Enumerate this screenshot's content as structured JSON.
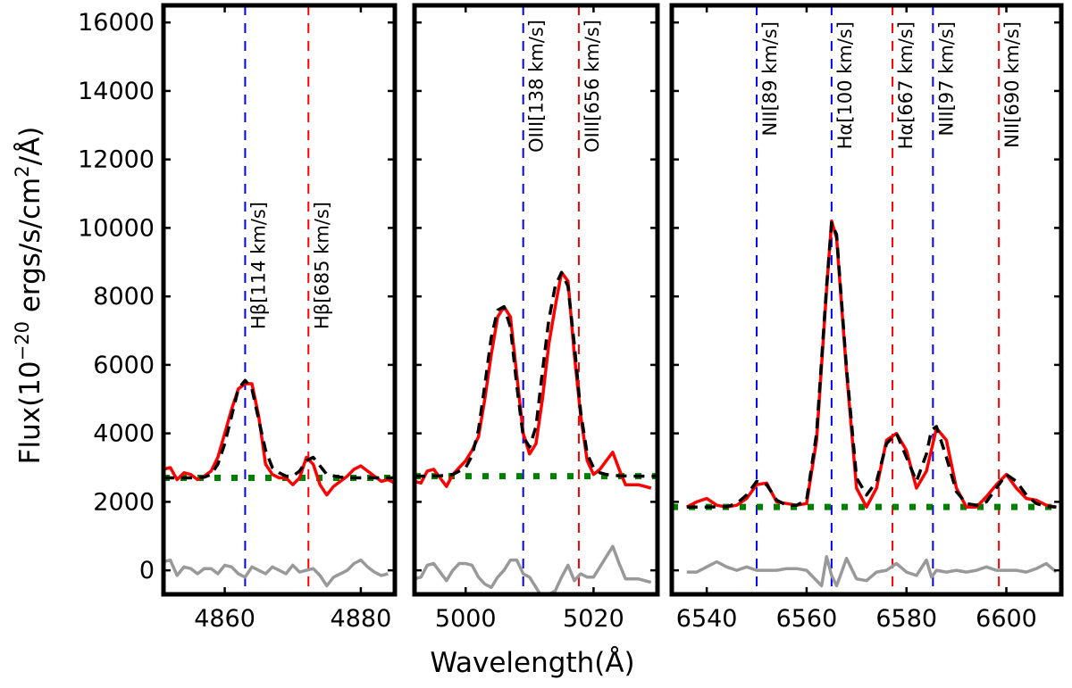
{
  "chart_data": {
    "type": "line",
    "xlabel": "Wavelength(Å)",
    "ylabel_parts": [
      "Flux(10",
      "−20",
      " ergs/s/cm",
      "2",
      "/Å)"
    ],
    "ylabel": "Flux(10−20 ergs/s/cm2/Å)",
    "ylim": [
      -700,
      16500
    ],
    "y_ticks": [
      0,
      2000,
      4000,
      6000,
      8000,
      10000,
      12000,
      14000,
      16000
    ],
    "y_tick_labels": [
      "0",
      "2000",
      "4000",
      "6000",
      "8000",
      "10000",
      "12000",
      "14000",
      "16000"
    ],
    "colors": {
      "observed": "#ff0000",
      "model": "#000000",
      "continuum": "#008000",
      "residual": "#999999",
      "narrow": "#0000ff",
      "broad": "#ff0000"
    },
    "panels": [
      {
        "name": "hbeta",
        "xlim": [
          4851,
          4885
        ],
        "x_ticks": [
          4860,
          4880
        ],
        "x_tick_labels": [
          "4860",
          "4880"
        ],
        "continuum": 2700,
        "observed": {
          "x": [
            4851,
            4852,
            4853,
            4854,
            4855,
            4856,
            4857,
            4858,
            4859,
            4860,
            4861,
            4862,
            4863,
            4864,
            4865,
            4866,
            4867,
            4868,
            4869,
            4870,
            4871,
            4872,
            4873,
            4874,
            4875,
            4876,
            4877,
            4878,
            4879,
            4880,
            4881,
            4882,
            4883,
            4884,
            4885
          ],
          "y": [
            2950,
            3000,
            2650,
            2850,
            2800,
            2650,
            2750,
            2900,
            3300,
            4000,
            4700,
            5300,
            5450,
            5450,
            4500,
            3100,
            2800,
            2700,
            2700,
            2500,
            2700,
            3300,
            3100,
            2500,
            2200,
            2450,
            2600,
            2750,
            2950,
            3050,
            2900,
            2750,
            2600,
            2650,
            2550
          ]
        },
        "model": {
          "x": [
            4851,
            4853,
            4855,
            4857,
            4858,
            4859,
            4860,
            4861,
            4862,
            4863,
            4864,
            4865,
            4866,
            4867,
            4868,
            4869,
            4870,
            4871,
            4872,
            4873,
            4874,
            4875,
            4877,
            4879,
            4881,
            4883,
            4885
          ],
          "y": [
            2700,
            2700,
            2700,
            2720,
            2800,
            3100,
            3700,
            4500,
            5300,
            5550,
            5300,
            4400,
            3500,
            3000,
            2850,
            2750,
            2750,
            2900,
            3200,
            3300,
            3050,
            2800,
            2720,
            2700,
            2700,
            2700,
            2700
          ]
        },
        "residual": {
          "x": [
            4851,
            4852,
            4853,
            4854,
            4855,
            4856,
            4857,
            4858,
            4859,
            4860,
            4861,
            4862,
            4863,
            4864,
            4865,
            4866,
            4867,
            4868,
            4869,
            4870,
            4871,
            4872,
            4873,
            4874,
            4875,
            4876,
            4877,
            4878,
            4879,
            4880,
            4881,
            4882,
            4883,
            4884
          ],
          "y": [
            250,
            300,
            -150,
            100,
            50,
            -100,
            50,
            50,
            -100,
            150,
            100,
            -100,
            -200,
            100,
            0,
            -100,
            100,
            0,
            -100,
            150,
            -50,
            0,
            50,
            -150,
            -450,
            -200,
            -100,
            0,
            200,
            300,
            100,
            -50,
            -150,
            -100
          ]
        },
        "lines": [
          {
            "x": 4863.0,
            "component": "narrow",
            "label": "Hβ[114 km/s]"
          },
          {
            "x": 4872.3,
            "component": "broad",
            "label": "Hβ[685 km/s]"
          }
        ]
      },
      {
        "name": "oiii",
        "xlim": [
          4992,
          5030
        ],
        "x_ticks": [
          5000,
          5020
        ],
        "x_tick_labels": [
          "5000",
          "5020"
        ],
        "continuum": 2750,
        "observed": {
          "x": [
            4992,
            4993,
            4994,
            4995,
            4996,
            4997,
            4998,
            4999,
            5000,
            5001,
            5002,
            5003,
            5004,
            5005,
            5006,
            5007,
            5008,
            5009,
            5010,
            5011,
            5012,
            5013,
            5014,
            5015,
            5016,
            5017,
            5018,
            5019,
            5020,
            5021,
            5022,
            5023,
            5024,
            5025,
            5026,
            5027,
            5028,
            5029
          ],
          "y": [
            2600,
            2550,
            2900,
            2950,
            2700,
            2450,
            2800,
            3000,
            3200,
            3500,
            3900,
            5000,
            6300,
            7400,
            7700,
            7400,
            5700,
            4000,
            3400,
            3700,
            5000,
            6600,
            7700,
            8700,
            8450,
            6300,
            4500,
            3200,
            2800,
            2950,
            3200,
            3450,
            2950,
            2500,
            2500,
            2500,
            2450,
            2400
          ]
        },
        "model": {
          "x": [
            4992,
            4994,
            4996,
            4998,
            5000,
            5001,
            5002,
            5003,
            5004,
            5005,
            5006,
            5007,
            5008,
            5009,
            5010,
            5011,
            5012,
            5013,
            5014,
            5015,
            5016,
            5017,
            5018,
            5019,
            5020,
            5021,
            5022,
            5024,
            5026,
            5028,
            5030
          ],
          "y": [
            2750,
            2750,
            2760,
            2800,
            3000,
            3350,
            4100,
            5400,
            6800,
            7600,
            7700,
            7100,
            5400,
            3900,
            3600,
            4200,
            5800,
            7300,
            8300,
            8700,
            8300,
            6600,
            4600,
            3400,
            3000,
            2850,
            2800,
            2760,
            2750,
            2750,
            2750
          ]
        },
        "residual": {
          "x": [
            4992,
            4993,
            4994,
            4995,
            4996,
            4997,
            4998,
            4999,
            5000,
            5001,
            5002,
            5003,
            5004,
            5005,
            5006,
            5007,
            5008,
            5009,
            5010,
            5011,
            5012,
            5013,
            5014,
            5015,
            5016,
            5017,
            5018,
            5019,
            5020,
            5021,
            5022,
            5023,
            5024,
            5025,
            5026,
            5027,
            5028,
            5029
          ],
          "y": [
            -250,
            -200,
            150,
            200,
            -50,
            -300,
            0,
            200,
            200,
            150,
            -200,
            -400,
            -500,
            -200,
            0,
            300,
            300,
            -100,
            -200,
            -500,
            -800,
            -700,
            -600,
            -200,
            150,
            -300,
            -100,
            -200,
            -200,
            100,
            400,
            700,
            200,
            -250,
            -250,
            -250,
            -300,
            -350
          ]
        },
        "lines": [
          {
            "x": 5009.0,
            "component": "narrow",
            "label": "OIII[138 km/s]"
          },
          {
            "x": 5017.7,
            "component": "broad",
            "label": "OIII[656 km/s]"
          }
        ]
      },
      {
        "name": "halpha",
        "xlim": [
          6533,
          6611
        ],
        "x_ticks": [
          6540,
          6560,
          6580,
          6600
        ],
        "x_tick_labels": [
          "6540",
          "6560",
          "6580",
          "6600"
        ],
        "continuum": 1850,
        "observed": {
          "x": [
            6536,
            6538,
            6540,
            6542,
            6544,
            6546,
            6548,
            6550,
            6552,
            6554,
            6556,
            6558,
            6560,
            6562,
            6564,
            6565,
            6566,
            6568,
            6570,
            6572,
            6574,
            6576,
            6578,
            6580,
            6582,
            6584,
            6586,
            6588,
            6590,
            6592,
            6594,
            6596,
            6598,
            6600,
            6602,
            6604,
            6606,
            6608,
            6610
          ],
          "y": [
            1850,
            2000,
            2100,
            1900,
            1850,
            1900,
            2100,
            2500,
            2550,
            2000,
            1950,
            1900,
            1950,
            3800,
            8200,
            10200,
            9700,
            5800,
            2400,
            1850,
            2400,
            3800,
            4000,
            3500,
            2400,
            2900,
            4150,
            3800,
            2400,
            1850,
            1850,
            2150,
            2500,
            2800,
            2400,
            2100,
            2050,
            1900,
            1850
          ]
        },
        "model": {
          "x": [
            6536,
            6540,
            6544,
            6546,
            6548,
            6550,
            6552,
            6554,
            6556,
            6558,
            6560,
            6562,
            6564,
            6565,
            6566,
            6568,
            6570,
            6572,
            6574,
            6576,
            6578,
            6580,
            6582,
            6584,
            6585,
            6586,
            6588,
            6590,
            6592,
            6594,
            6596,
            6598,
            6600,
            6602,
            6604,
            6606,
            6608,
            6610
          ],
          "y": [
            1850,
            1850,
            1860,
            1950,
            2200,
            2600,
            2500,
            2050,
            1900,
            1900,
            2050,
            4000,
            8300,
            10150,
            9800,
            5900,
            2700,
            2200,
            2600,
            3700,
            4000,
            3300,
            2600,
            3400,
            4100,
            4200,
            3300,
            2300,
            1950,
            1900,
            2000,
            2400,
            2800,
            2600,
            2200,
            1950,
            1870,
            1850
          ]
        },
        "residual": {
          "x": [
            6536,
            6538,
            6540,
            6542,
            6544,
            6546,
            6548,
            6550,
            6552,
            6554,
            6556,
            6558,
            6560,
            6562,
            6563,
            6564,
            6565,
            6566,
            6567,
            6568,
            6570,
            6572,
            6574,
            6576,
            6578,
            6580,
            6582,
            6584,
            6585,
            6586,
            6588,
            6590,
            6592,
            6594,
            6596,
            6598,
            6600,
            6602,
            6604,
            6606,
            6608,
            6610
          ],
          "y": [
            -50,
            -50,
            100,
            250,
            100,
            0,
            100,
            0,
            0,
            0,
            50,
            50,
            0,
            -300,
            -450,
            400,
            -150,
            -450,
            -50,
            350,
            -250,
            -300,
            -50,
            0,
            200,
            -50,
            -150,
            300,
            -200,
            0,
            -50,
            0,
            -50,
            0,
            100,
            0,
            0,
            0,
            -50,
            50,
            200,
            -50
          ]
        },
        "lines": [
          {
            "x": 6550.0,
            "component": "narrow",
            "label": "NII[89 km/s]"
          },
          {
            "x": 6565.0,
            "component": "narrow",
            "label": "Hα[100 km/s]"
          },
          {
            "x": 6577.2,
            "component": "broad",
            "label": "Hα[667 km/s]"
          },
          {
            "x": 6585.3,
            "component": "narrow",
            "label": "NII[97 km/s]"
          },
          {
            "x": 6598.5,
            "component": "broad",
            "label": "NII[690 km/s]"
          }
        ]
      }
    ]
  }
}
